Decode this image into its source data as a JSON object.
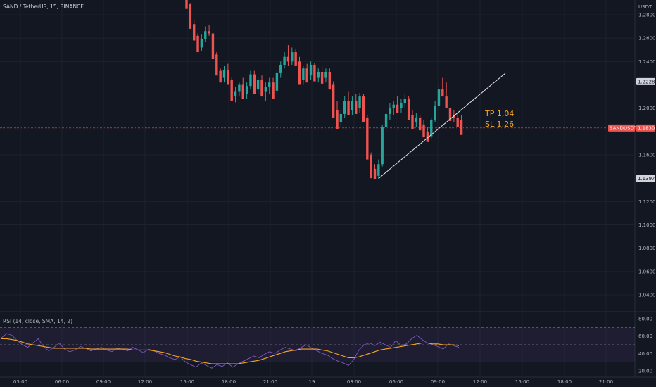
{
  "header": {
    "symbol_title": "SAND / TetherUS, 15, BINANCE",
    "currency": "USDT"
  },
  "annotations": {
    "tp": "TP 1,04",
    "sl": "SL 1,26"
  },
  "price_tags": {
    "upper": "1.2228",
    "symbol": "SANDUSDT",
    "current": "1.1830",
    "lower": "1.1397"
  },
  "rsi": {
    "title": "RSI (14, close, SMA, 14, 2)",
    "ticks": [
      "80.00",
      "60.00",
      "40.00",
      "20.00"
    ],
    "levels": [
      70,
      50,
      30
    ],
    "range": [
      15,
      85
    ],
    "rsi_color": "#7e57c2",
    "ma_color": "#f7a521",
    "rsi_values": [
      58,
      63,
      61,
      55,
      50,
      47,
      52,
      57,
      48,
      43,
      47,
      52,
      45,
      42,
      44,
      48,
      46,
      43,
      45,
      47,
      44,
      42,
      46,
      45,
      43,
      47,
      44,
      41,
      45,
      43,
      40,
      38,
      35,
      33,
      36,
      30,
      27,
      24,
      29,
      26,
      23,
      27,
      25,
      29,
      24,
      28,
      31,
      34,
      37,
      35,
      39,
      42,
      40,
      44,
      47,
      45,
      43,
      47,
      50,
      46,
      43,
      40,
      38,
      34,
      31,
      29,
      26,
      33,
      44,
      50,
      52,
      49,
      53,
      50,
      47,
      55,
      49,
      51,
      57,
      61,
      56,
      52,
      50,
      48,
      45,
      51,
      49,
      47
    ],
    "ma_values": [
      57,
      57,
      56,
      55,
      53,
      51,
      50,
      49,
      48,
      47,
      46,
      46,
      46,
      46,
      46,
      46,
      46,
      45,
      45,
      45,
      45,
      45,
      45,
      45,
      45,
      44,
      44,
      44,
      44,
      43,
      42,
      41,
      39,
      37,
      36,
      34,
      33,
      31,
      30,
      29,
      28,
      28,
      28,
      28,
      28,
      28,
      29,
      30,
      31,
      32,
      34,
      36,
      38,
      40,
      42,
      43,
      44,
      45,
      45,
      45,
      45,
      44,
      43,
      41,
      39,
      37,
      35,
      35,
      36,
      38,
      40,
      42,
      44,
      45,
      46,
      47,
      48,
      49,
      50,
      51,
      52,
      52,
      51,
      51,
      50,
      50,
      50,
      49
    ]
  },
  "chart_data": {
    "type": "candlestick",
    "title": "SAND / TetherUS, 15, BINANCE",
    "ylabel": "USDT",
    "ylim": [
      1.02,
      1.29
    ],
    "yticks": [
      "1.2800",
      "1.2600",
      "1.2400",
      "1.2228",
      "1.2000",
      "1.1830",
      "1.1600",
      "1.1397",
      "1.1200",
      "1.1000",
      "1.0800",
      "1.0600",
      "1.0400"
    ],
    "xticks": [
      "03:00",
      "06:00",
      "09:00",
      "12:00",
      "15:00",
      "18:00",
      "21:00",
      "19",
      "03:00",
      "06:00",
      "09:00",
      "12:00",
      "15:00",
      "18:00",
      "21:00"
    ],
    "up_color": "#26a69a",
    "down_color": "#ef5350",
    "current_price": 1.183,
    "candles": [
      [
        1.296,
        1.294,
        1.289,
        1.285
      ],
      [
        1.289,
        1.29,
        1.272,
        1.268
      ],
      [
        1.272,
        1.276,
        1.262,
        1.258
      ],
      [
        1.262,
        1.264,
        1.252,
        1.248
      ],
      [
        1.252,
        1.263,
        1.249,
        1.259
      ],
      [
        1.259,
        1.27,
        1.257,
        1.266
      ],
      [
        1.266,
        1.271,
        1.262,
        1.264
      ],
      [
        1.264,
        1.266,
        1.246,
        1.242
      ],
      [
        1.246,
        1.248,
        1.232,
        1.228
      ],
      [
        1.232,
        1.234,
        1.226,
        1.222
      ],
      [
        1.226,
        1.236,
        1.222,
        1.233
      ],
      [
        1.233,
        1.238,
        1.224,
        1.22
      ],
      [
        1.224,
        1.226,
        1.21,
        1.206
      ],
      [
        1.21,
        1.218,
        1.205,
        1.214
      ],
      [
        1.214,
        1.222,
        1.21,
        1.22
      ],
      [
        1.22,
        1.226,
        1.212,
        1.208
      ],
      [
        1.212,
        1.222,
        1.208,
        1.219
      ],
      [
        1.219,
        1.232,
        1.216,
        1.229
      ],
      [
        1.229,
        1.232,
        1.216,
        1.212
      ],
      [
        1.216,
        1.226,
        1.212,
        1.224
      ],
      [
        1.224,
        1.228,
        1.214,
        1.21
      ],
      [
        1.214,
        1.222,
        1.206,
        1.218
      ],
      [
        1.218,
        1.226,
        1.212,
        1.222
      ],
      [
        1.222,
        1.226,
        1.212,
        1.208
      ],
      [
        1.215,
        1.232,
        1.212,
        1.23
      ],
      [
        1.23,
        1.24,
        1.226,
        1.237
      ],
      [
        1.237,
        1.248,
        1.234,
        1.244
      ],
      [
        1.244,
        1.254,
        1.236,
        1.24
      ],
      [
        1.24,
        1.252,
        1.237,
        1.248
      ],
      [
        1.248,
        1.251,
        1.239,
        1.236
      ],
      [
        1.24,
        1.244,
        1.224,
        1.22
      ],
      [
        1.224,
        1.236,
        1.22,
        1.234
      ],
      [
        1.234,
        1.238,
        1.226,
        1.222
      ],
      [
        1.228,
        1.24,
        1.224,
        1.237
      ],
      [
        1.237,
        1.239,
        1.226,
        1.223
      ],
      [
        1.226,
        1.234,
        1.222,
        1.231
      ],
      [
        1.231,
        1.236,
        1.224,
        1.221
      ],
      [
        1.226,
        1.234,
        1.222,
        1.231
      ],
      [
        1.231,
        1.234,
        1.22,
        1.216
      ],
      [
        1.22,
        1.223,
        1.196,
        1.192
      ],
      [
        1.198,
        1.206,
        1.186,
        1.182
      ],
      [
        1.188,
        1.198,
        1.184,
        1.195
      ],
      [
        1.195,
        1.21,
        1.192,
        1.206
      ],
      [
        1.206,
        1.214,
        1.198,
        1.194
      ],
      [
        1.198,
        1.21,
        1.194,
        1.206
      ],
      [
        1.206,
        1.212,
        1.198,
        1.195
      ],
      [
        1.2,
        1.213,
        1.196,
        1.21
      ],
      [
        1.21,
        1.212,
        1.192,
        1.188
      ],
      [
        1.192,
        1.194,
        1.16,
        1.156
      ],
      [
        1.16,
        1.162,
        1.144,
        1.14
      ],
      [
        1.148,
        1.152,
        1.142,
        1.139
      ],
      [
        1.142,
        1.156,
        1.139,
        1.152
      ],
      [
        1.152,
        1.186,
        1.15,
        1.184
      ],
      [
        1.184,
        1.198,
        1.18,
        1.195
      ],
      [
        1.195,
        1.204,
        1.19,
        1.2
      ],
      [
        1.2,
        1.206,
        1.194,
        1.203
      ],
      [
        1.203,
        1.21,
        1.198,
        1.196
      ],
      [
        1.2,
        1.208,
        1.196,
        1.204
      ],
      [
        1.204,
        1.212,
        1.2,
        1.208
      ],
      [
        1.208,
        1.21,
        1.194,
        1.19
      ],
      [
        1.194,
        1.198,
        1.186,
        1.182
      ],
      [
        1.188,
        1.196,
        1.184,
        1.192
      ],
      [
        1.192,
        1.194,
        1.184,
        1.181
      ],
      [
        1.186,
        1.19,
        1.178,
        1.175
      ],
      [
        1.18,
        1.184,
        1.174,
        1.171
      ],
      [
        1.176,
        1.192,
        1.174,
        1.19
      ],
      [
        1.19,
        1.206,
        1.188,
        1.202
      ],
      [
        1.202,
        1.22,
        1.198,
        1.216
      ],
      [
        1.216,
        1.226,
        1.212,
        1.21
      ],
      [
        1.21,
        1.222,
        1.204,
        1.2
      ],
      [
        1.2,
        1.202,
        1.192,
        1.189
      ],
      [
        1.194,
        1.198,
        1.188,
        1.192
      ],
      [
        1.192,
        1.196,
        1.186,
        1.184
      ],
      [
        1.19,
        1.194,
        1.18,
        1.177
      ]
    ],
    "trendline": {
      "from": [
        51,
        1.1397
      ],
      "to": [
        82,
        1.2228
      ]
    }
  }
}
